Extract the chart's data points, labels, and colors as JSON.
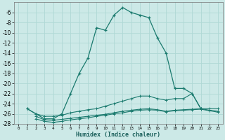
{
  "bg_color": "#cce9e7",
  "grid_color": "#afd8d5",
  "line_color": "#1a7a6e",
  "xlabel": "Humidex (Indice chaleur)",
  "xlim": [
    -0.5,
    23.5
  ],
  "ylim": [
    -28,
    -4
  ],
  "xticks": [
    0,
    1,
    2,
    3,
    4,
    5,
    6,
    7,
    8,
    9,
    10,
    11,
    12,
    13,
    14,
    15,
    16,
    17,
    18,
    19,
    20,
    21,
    22,
    23
  ],
  "yticks": [
    -6,
    -8,
    -10,
    -12,
    -14,
    -16,
    -18,
    -20,
    -22,
    -24,
    -26,
    -28
  ],
  "curve1_x": [
    1,
    2,
    3,
    4,
    5,
    6,
    7,
    8,
    9,
    10,
    11,
    12,
    13,
    14,
    15,
    16,
    17,
    18,
    19,
    20,
    21
  ],
  "curve1_y": [
    -25,
    -26,
    -27,
    -27,
    -26,
    -22,
    -18,
    -15,
    -9,
    -9.5,
    -6.5,
    -5,
    -6,
    -6.5,
    -7,
    -11,
    -14,
    -21,
    -21,
    -22,
    -25
  ],
  "curve2_x": [
    1,
    2,
    3,
    4,
    5,
    6,
    7,
    8,
    9,
    10,
    11,
    12,
    13,
    14,
    15,
    16,
    17,
    18,
    19,
    20,
    21,
    22,
    23
  ],
  "curve2_y": [
    -25,
    -26,
    -26.5,
    -26.5,
    -26.3,
    -25.8,
    -25.5,
    -25.2,
    -25,
    -24.5,
    -24,
    -23.5,
    -23,
    -22.5,
    -22.5,
    -23,
    -23.3,
    -23,
    -23,
    -22,
    -25,
    -25,
    -25
  ],
  "curve3_x": [
    2,
    3,
    4,
    5,
    6,
    7,
    8,
    9,
    10,
    11,
    12,
    13,
    14,
    15,
    16,
    17,
    18,
    19,
    20,
    21,
    22,
    23
  ],
  "curve3_y": [
    -26.5,
    -27.2,
    -27.3,
    -27.1,
    -26.9,
    -26.7,
    -26.5,
    -26.3,
    -26.1,
    -25.8,
    -25.5,
    -25.3,
    -25.1,
    -25,
    -25.2,
    -25.5,
    -25.3,
    -25.2,
    -25.1,
    -25.0,
    -25.3,
    -25.5
  ],
  "curve4_x": [
    2,
    3,
    4,
    5,
    6,
    7,
    8,
    9,
    10,
    11,
    12,
    13,
    14,
    15,
    16,
    17,
    18,
    19,
    20,
    21,
    22,
    23
  ],
  "curve4_y": [
    -27,
    -27.5,
    -27.7,
    -27.5,
    -27.2,
    -27.0,
    -26.8,
    -26.5,
    -26.3,
    -26.0,
    -25.8,
    -25.5,
    -25.3,
    -25.2,
    -25.3,
    -25.6,
    -25.4,
    -25.3,
    -25.2,
    -25.1,
    -25.4,
    -25.7
  ]
}
